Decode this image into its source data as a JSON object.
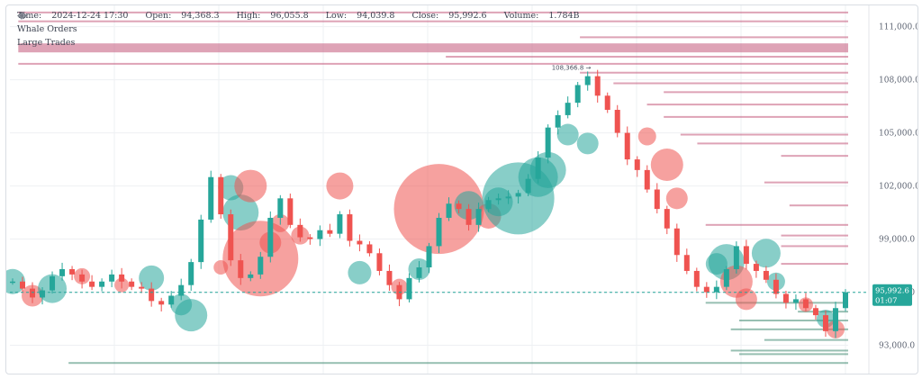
{
  "header": {
    "time_label": "Time:",
    "time": "2024-12-24 17:30",
    "open_label": "Open:",
    "open": "94,368.3",
    "high_label": "High:",
    "high": "96,055.8",
    "low_label": "Low:",
    "low": "94,039.8",
    "close_label": "Close:",
    "close": "95,992.6",
    "volume_label": "Volume:",
    "volume": "1.784B"
  },
  "indicators": [
    {
      "name": "Whale Orders",
      "icons": [
        "eye-icon",
        "gear-icon"
      ]
    },
    {
      "name": "Large Trades",
      "icons": [
        "eye-icon",
        "gear-icon"
      ]
    }
  ],
  "colors": {
    "bull": "#26a69a",
    "bear": "#ef5350",
    "grid": "#eef0f3",
    "price_tag_bg": "#26a69a",
    "ask_wall": "#c2587a",
    "bid_wall": "#2f7f66"
  },
  "chart_data": {
    "type": "candlestick",
    "y_ticks": [
      "111,000.0",
      "108,000.0",
      "105,000.0",
      "102,000.0",
      "99,000.0",
      "96,000.0",
      "93,000.0"
    ],
    "y_tick_values": [
      111000,
      108000,
      105000,
      102000,
      99000,
      96000,
      93000
    ],
    "ylim": [
      91400,
      112200
    ],
    "current_price": "95,992.6",
    "current_price_value": 95992.6,
    "countdown": "01:07",
    "high_marker": "108,366.8",
    "high_marker_value": 108366.8,
    "grid": true,
    "close_path": [
      96600,
      96200,
      95700,
      96100,
      96900,
      97300,
      97000,
      96600,
      96300,
      96600,
      97000,
      96600,
      96300,
      96200,
      95500,
      95300,
      95800,
      96400,
      97700,
      100100,
      102500,
      100400,
      97800,
      96800,
      97000,
      98000,
      100200,
      101300,
      99800,
      99100,
      99000,
      99500,
      99300,
      100400,
      98900,
      98700,
      98200,
      97200,
      96400,
      95600,
      96800,
      97400,
      98600,
      100200,
      101000,
      100700,
      99800,
      100700,
      101200,
      101300,
      101400,
      101600,
      102400,
      103600,
      105300,
      106000,
      106700,
      107700,
      108200,
      107100,
      106300,
      105000,
      103500,
      102900,
      101800,
      100700,
      99600,
      98100,
      97200,
      96300,
      96000,
      96300,
      97300,
      98600,
      97600,
      97200,
      96700,
      95900,
      95400,
      95600,
      95100,
      94700,
      93800,
      95100,
      95992
    ],
    "trades": [
      {
        "i": 0,
        "p": 96600,
        "r": 14,
        "side": "buy"
      },
      {
        "i": 2,
        "p": 95800,
        "r": 12,
        "side": "sell"
      },
      {
        "i": 4,
        "p": 96200,
        "r": 16,
        "side": "buy"
      },
      {
        "i": 7,
        "p": 96900,
        "r": 9,
        "side": "sell"
      },
      {
        "i": 11,
        "p": 96400,
        "r": 8,
        "side": "sell"
      },
      {
        "i": 14,
        "p": 96800,
        "r": 14,
        "side": "buy"
      },
      {
        "i": 17,
        "p": 95300,
        "r": 12,
        "side": "buy"
      },
      {
        "i": 18,
        "p": 94700,
        "r": 18,
        "side": "buy"
      },
      {
        "i": 21,
        "p": 97400,
        "r": 8,
        "side": "sell"
      },
      {
        "i": 22,
        "p": 101900,
        "r": 14,
        "side": "buy"
      },
      {
        "i": 23,
        "p": 100500,
        "r": 20,
        "side": "buy"
      },
      {
        "i": 24,
        "p": 102000,
        "r": 18,
        "side": "sell"
      },
      {
        "i": 25,
        "p": 97900,
        "r": 42,
        "side": "sell"
      },
      {
        "i": 26,
        "p": 98800,
        "r": 12,
        "side": "sell"
      },
      {
        "i": 27,
        "p": 99900,
        "r": 10,
        "side": "sell"
      },
      {
        "i": 29,
        "p": 99200,
        "r": 10,
        "side": "sell"
      },
      {
        "i": 33,
        "p": 102000,
        "r": 15,
        "side": "sell"
      },
      {
        "i": 35,
        "p": 97100,
        "r": 13,
        "side": "buy"
      },
      {
        "i": 39,
        "p": 96300,
        "r": 9,
        "side": "sell"
      },
      {
        "i": 41,
        "p": 97300,
        "r": 12,
        "side": "buy"
      },
      {
        "i": 43,
        "p": 100700,
        "r": 50,
        "side": "sell"
      },
      {
        "i": 46,
        "p": 100900,
        "r": 16,
        "side": "buy"
      },
      {
        "i": 48,
        "p": 100300,
        "r": 14,
        "side": "sell"
      },
      {
        "i": 49,
        "p": 101100,
        "r": 16,
        "side": "buy"
      },
      {
        "i": 51,
        "p": 101300,
        "r": 40,
        "side": "buy"
      },
      {
        "i": 53,
        "p": 102500,
        "r": 22,
        "side": "buy"
      },
      {
        "i": 54,
        "p": 102900,
        "r": 20,
        "side": "buy"
      },
      {
        "i": 56,
        "p": 104900,
        "r": 12,
        "side": "buy"
      },
      {
        "i": 58,
        "p": 104400,
        "r": 12,
        "side": "buy"
      },
      {
        "i": 64,
        "p": 104800,
        "r": 10,
        "side": "sell"
      },
      {
        "i": 66,
        "p": 103200,
        "r": 18,
        "side": "sell"
      },
      {
        "i": 67,
        "p": 101300,
        "r": 12,
        "side": "sell"
      },
      {
        "i": 71,
        "p": 97600,
        "r": 12,
        "side": "buy"
      },
      {
        "i": 72,
        "p": 97700,
        "r": 20,
        "side": "buy"
      },
      {
        "i": 73,
        "p": 96600,
        "r": 18,
        "side": "sell"
      },
      {
        "i": 74,
        "p": 95600,
        "r": 12,
        "side": "sell"
      },
      {
        "i": 76,
        "p": 98200,
        "r": 16,
        "side": "buy"
      },
      {
        "i": 77,
        "p": 96600,
        "r": 10,
        "side": "buy"
      },
      {
        "i": 80,
        "p": 95300,
        "r": 8,
        "side": "sell"
      },
      {
        "i": 82,
        "p": 94500,
        "r": 10,
        "side": "buy"
      },
      {
        "i": 83,
        "p": 93900,
        "r": 10,
        "side": "sell"
      }
    ],
    "whale_walls": [
      {
        "p": 111800,
        "len": 0.99,
        "side": "ask"
      },
      {
        "p": 111300,
        "len": 0.99,
        "side": "ask"
      },
      {
        "p": 110400,
        "len": 0.32,
        "side": "ask"
      },
      {
        "p": 109800,
        "len": 0.99,
        "side": "ask"
      },
      {
        "p": 109300,
        "len": 0.48,
        "side": "ask"
      },
      {
        "p": 108900,
        "len": 0.99,
        "side": "ask"
      },
      {
        "p": 108400,
        "len": 0.32,
        "side": "ask"
      },
      {
        "p": 107800,
        "len": 0.28,
        "side": "ask"
      },
      {
        "p": 107300,
        "len": 0.22,
        "side": "ask"
      },
      {
        "p": 106600,
        "len": 0.24,
        "side": "ask"
      },
      {
        "p": 105900,
        "len": 0.22,
        "side": "ask"
      },
      {
        "p": 104900,
        "len": 0.2,
        "side": "ask"
      },
      {
        "p": 104400,
        "len": 0.18,
        "side": "ask"
      },
      {
        "p": 103700,
        "len": 0.08,
        "side": "ask"
      },
      {
        "p": 102200,
        "len": 0.1,
        "side": "ask"
      },
      {
        "p": 100900,
        "len": 0.07,
        "side": "ask"
      },
      {
        "p": 99800,
        "len": 0.17,
        "side": "ask"
      },
      {
        "p": 99200,
        "len": 0.08,
        "side": "ask"
      },
      {
        "p": 98600,
        "len": 0.08,
        "side": "ask"
      },
      {
        "p": 97600,
        "len": 0.08,
        "side": "ask"
      },
      {
        "p": 95400,
        "len": 0.17,
        "side": "bid"
      },
      {
        "p": 94900,
        "len": 0.06,
        "side": "bid"
      },
      {
        "p": 94400,
        "len": 0.13,
        "side": "bid"
      },
      {
        "p": 93900,
        "len": 0.14,
        "side": "bid"
      },
      {
        "p": 93300,
        "len": 0.1,
        "side": "bid"
      },
      {
        "p": 92700,
        "len": 0.14,
        "side": "bid"
      },
      {
        "p": 92500,
        "len": 0.13,
        "side": "bid"
      },
      {
        "p": 92000,
        "len": 0.93,
        "side": "bid"
      }
    ]
  }
}
